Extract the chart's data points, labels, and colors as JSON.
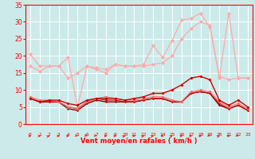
{
  "x": [
    0,
    1,
    2,
    3,
    4,
    5,
    6,
    7,
    8,
    9,
    10,
    11,
    12,
    13,
    14,
    15,
    16,
    17,
    18,
    19,
    20,
    21,
    22,
    23
  ],
  "line_rafales": [
    20.5,
    17.0,
    17.0,
    17.0,
    19.5,
    5.0,
    17.0,
    16.0,
    15.0,
    17.5,
    17.0,
    17.0,
    17.5,
    23.0,
    19.5,
    24.5,
    30.5,
    31.0,
    32.5,
    28.5,
    13.5,
    32.5,
    13.5,
    13.5
  ],
  "line_envelope_top": [
    null,
    null,
    null,
    null,
    null,
    null,
    null,
    null,
    null,
    null,
    null,
    null,
    null,
    null,
    null,
    null,
    null,
    null,
    null,
    null,
    null,
    null,
    null,
    null
  ],
  "line_upper": [
    17.0,
    15.5,
    17.0,
    17.0,
    13.5,
    15.0,
    17.0,
    16.5,
    16.0,
    17.5,
    17.0,
    17.0,
    17.0,
    17.5,
    18.0,
    20.0,
    25.0,
    28.0,
    30.0,
    29.0,
    14.0,
    13.0,
    13.5,
    13.5
  ],
  "line_moy": [
    7.5,
    6.5,
    7.0,
    7.0,
    6.0,
    5.5,
    7.0,
    7.5,
    7.5,
    7.5,
    7.0,
    7.5,
    8.0,
    9.0,
    9.0,
    10.0,
    11.5,
    13.5,
    14.0,
    13.0,
    7.0,
    5.5,
    7.0,
    5.0
  ],
  "line_low1": [
    8.0,
    7.0,
    7.0,
    6.5,
    5.0,
    4.5,
    6.5,
    7.5,
    8.0,
    7.5,
    7.0,
    7.0,
    7.5,
    8.0,
    8.0,
    7.0,
    6.5,
    9.5,
    10.0,
    9.5,
    6.5,
    5.0,
    6.0,
    4.5
  ],
  "line_low2": [
    7.5,
    6.5,
    6.5,
    6.5,
    5.0,
    4.5,
    6.5,
    7.5,
    7.0,
    7.0,
    6.5,
    6.5,
    7.0,
    7.5,
    7.5,
    6.5,
    6.5,
    9.0,
    9.5,
    9.0,
    6.0,
    4.5,
    5.5,
    4.0
  ],
  "line_low3": [
    7.5,
    6.5,
    6.5,
    6.5,
    4.5,
    4.0,
    6.0,
    7.0,
    6.5,
    6.5,
    6.5,
    6.5,
    7.0,
    7.5,
    7.5,
    6.5,
    6.5,
    9.0,
    9.5,
    9.0,
    5.5,
    4.5,
    5.5,
    4.0
  ],
  "bg_color": "#cceaea",
  "grid_color": "#ffffff",
  "color_light": "#ffaaaa",
  "color_mid": "#ff6666",
  "color_dark": "#cc0000",
  "color_darkest": "#880000",
  "xlabel": "Vent moyen/en rafales ( km/h )",
  "ylim": [
    0,
    35
  ],
  "yticks": [
    0,
    5,
    10,
    15,
    20,
    25,
    30,
    35
  ]
}
